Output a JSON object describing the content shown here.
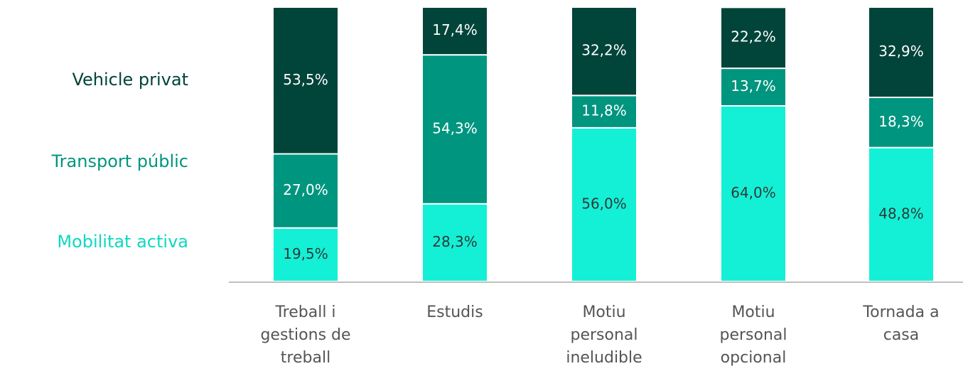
{
  "chart_data": {
    "type": "stacked_bar",
    "categories": [
      "Treball i\ngestions de\ntreball",
      "Estudis",
      "Motiu\npersonal\nineludible",
      "Motiu\npersonal\nopcional",
      "Tornada a\ncasa"
    ],
    "series": [
      {
        "name": "Mobilitat activa",
        "color": "#14f0d6",
        "label_color": "#2b3b38",
        "values": [
          19.5,
          28.3,
          56.0,
          64.0,
          48.8
        ],
        "value_labels": [
          "19,5%",
          "28,3%",
          "56,0%",
          "64,0%",
          "48,8%"
        ]
      },
      {
        "name": "Transport públic",
        "color": "#00957f",
        "label_color": "#ffffff",
        "values": [
          27.0,
          54.3,
          11.8,
          13.7,
          18.3
        ],
        "value_labels": [
          "27,0%",
          "54,3%",
          "11,8%",
          "13,7%",
          "18,3%"
        ]
      },
      {
        "name": "Vehicle privat",
        "color": "#00443a",
        "label_color": "#ffffff",
        "values": [
          53.5,
          17.4,
          32.2,
          22.2,
          32.9
        ],
        "value_labels": [
          "53,5%",
          "17,4%",
          "32,2%",
          "22,2%",
          "32,9%"
        ]
      }
    ],
    "ylim": [
      0,
      100
    ]
  }
}
